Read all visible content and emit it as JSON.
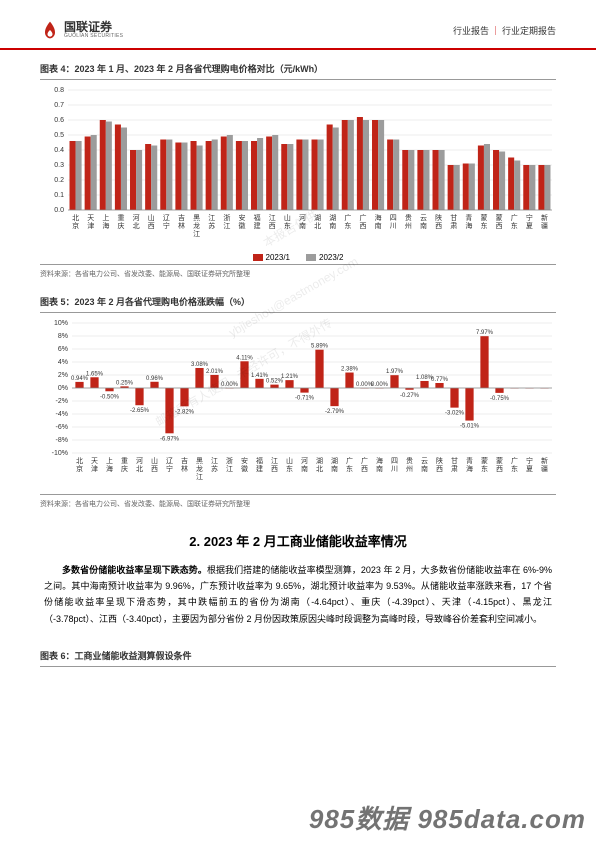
{
  "header": {
    "logo_cn": "国联证券",
    "logo_en": "GUOLIAN SECURITIES",
    "right_a": "行业报告",
    "right_b": "行业定期报告"
  },
  "chart4": {
    "title": "图表 4：2023 年 1 月、2023 年 2 月各省代理购电价格对比（元/kWh）",
    "type": "bar",
    "categories": [
      "北京",
      "天津",
      "上海",
      "重庆",
      "河北",
      "山西",
      "辽宁",
      "吉林",
      "黑龙江",
      "江苏",
      "浙江",
      "安徽",
      "福建",
      "江西",
      "山东",
      "河南",
      "湖北",
      "湖南",
      "广东",
      "广西",
      "海南",
      "四川",
      "贵州",
      "云南",
      "陕西",
      "甘肃",
      "青海",
      "蒙东",
      "蒙西",
      "广东",
      "宁夏",
      "新疆"
    ],
    "series": [
      {
        "name": "2023/1",
        "color": "#c02418",
        "values": [
          0.46,
          0.49,
          0.6,
          0.57,
          0.4,
          0.44,
          0.47,
          0.45,
          0.46,
          0.46,
          0.49,
          0.46,
          0.46,
          0.49,
          0.44,
          0.47,
          0.47,
          0.57,
          0.6,
          0.62,
          0.6,
          0.47,
          0.4,
          0.4,
          0.4,
          0.3,
          0.31,
          0.43,
          0.4,
          0.35,
          0.3,
          0.3
        ]
      },
      {
        "name": "2023/2",
        "color": "#9c9c9c",
        "values": [
          0.46,
          0.5,
          0.59,
          0.55,
          0.4,
          0.43,
          0.47,
          0.45,
          0.43,
          0.47,
          0.5,
          0.46,
          0.48,
          0.5,
          0.44,
          0.47,
          0.47,
          0.55,
          0.6,
          0.6,
          0.6,
          0.47,
          0.4,
          0.4,
          0.4,
          0.3,
          0.31,
          0.44,
          0.39,
          0.33,
          0.3,
          0.3
        ]
      }
    ],
    "ylim": [
      0,
      0.8
    ],
    "ytick_step": 0.1,
    "grid_color": "#d9d9d9",
    "axis_fontsize": 7,
    "source": "资料来源：各省电力公司、省发改委、能源局、国联证券研究所整理"
  },
  "chart5": {
    "title": "图表 5：2023 年 2 月各省代理购电价格涨跌幅（%）",
    "type": "bar",
    "categories": [
      "北京",
      "天津",
      "上海",
      "重庆",
      "河北",
      "山西",
      "辽宁",
      "吉林",
      "黑龙江",
      "江苏",
      "浙江",
      "安徽",
      "福建",
      "江西",
      "山东",
      "河南",
      "湖北",
      "湖南",
      "广东",
      "广西",
      "海南",
      "四川",
      "贵州",
      "云南",
      "陕西",
      "甘肃",
      "青海",
      "蒙东",
      "蒙西",
      "广东",
      "宁夏",
      "新疆"
    ],
    "values": [
      0.94,
      1.65,
      -0.5,
      0.25,
      -2.65,
      0.96,
      -6.97,
      -2.82,
      3.08,
      2.01,
      0.0,
      4.11,
      1.41,
      0.52,
      1.21,
      -0.71,
      5.89,
      -2.79,
      2.38,
      0.0,
      0.0,
      1.97,
      -0.27,
      1.08,
      0.77,
      -3.02,
      -5.01,
      7.97,
      -0.75,
      0.0,
      0.0,
      0.0
    ],
    "labels": [
      "0.94%",
      "1.65%",
      "-0.50%",
      "0.25%",
      "-2.65%",
      "0.96%",
      "-6.97%",
      "-2.82%",
      "3.08%",
      "2.01%",
      "0.00%",
      "4.11%",
      "1.41%",
      "0.52%",
      "1.21%",
      "-0.71%",
      "5.89%",
      "-2.79%",
      "2.38%",
      "0.00%",
      "0.00%",
      "1.97%",
      "-0.27%",
      "1.08%",
      "0.77%",
      "-3.02%",
      "-5.01%",
      "7.97%",
      "-0.75%",
      "",
      "",
      ""
    ],
    "bar_color": "#c02418",
    "ylim": [
      -10,
      10
    ],
    "ytick_step": 2,
    "grid_color": "#d9d9d9",
    "axis_fontsize": 7,
    "label_fontsize": 6,
    "source": "资料来源：各省电力公司、省发改委、能源局、国联证券研究所整理"
  },
  "heading": "2. 2023 年 2 月工商业储能收益率情况",
  "paragraph": {
    "bold": "多数省份储能收益率呈现下跌态势。",
    "rest": "根据我们搭建的储能收益率模型测算，2023 年 2 月，大多数省份储能收益率在 6%-9%之间。其中海南预计收益率为 9.96%，广东预计收益率为 9.65%，湖北预计收益率为 9.53%。从储能收益率涨跌来看，17 个省份储能收益率呈现下滑态势，其中跌幅前五的省份为湖南（-4.64pct）、重庆（-4.39pct）、天津（-4.15pct）、黑龙江（-3.78pct）、江西（-3.40pct），主要因为部分省份 2 月份因政策原因尖峰时段调整为高峰时段，导致峰谷价差套利空间减小。"
  },
  "chart6_title": "图表 6：工商业储能收益测算假设条件",
  "watermarks": [
    "本报告仅供",
    "ybjieshou@eastmoney.com",
    "邮箱所有人使用，",
    "未经许可，不得外传"
  ],
  "footer_wm": "985数据 985data.com"
}
